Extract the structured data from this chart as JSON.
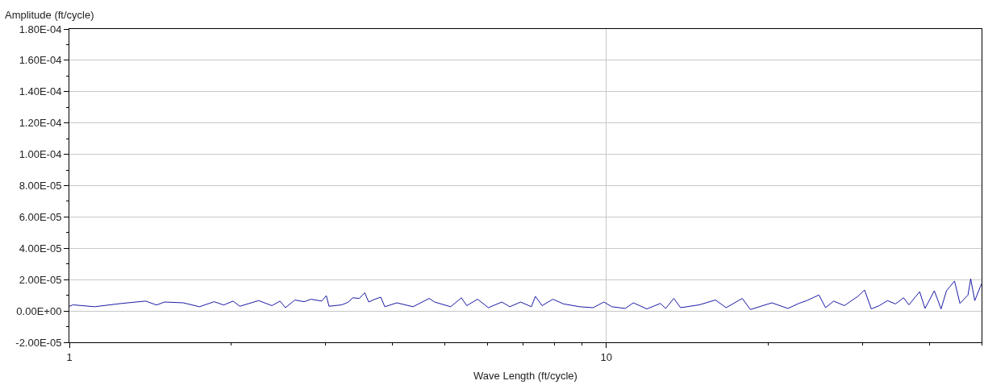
{
  "chart_data": {
    "type": "line",
    "ylabel": "Amplitude (ft/cycle)",
    "xlabel": "Wave Length (ft/cycle)",
    "log": "x",
    "grid": true,
    "marker": "none",
    "line_style": "solid",
    "xlim": [
      1,
      50
    ],
    "xticks": [
      1,
      {
        "value": 2,
        "label": null
      },
      {
        "value": 3,
        "label": null
      },
      {
        "value": 4,
        "label": null
      },
      {
        "value": 5,
        "label": null
      },
      {
        "value": 6,
        "label": null
      },
      {
        "value": 7,
        "label": null
      },
      {
        "value": 8,
        "label": null
      },
      {
        "value": 9,
        "label": null
      },
      10,
      {
        "value": 20,
        "label": null
      },
      {
        "value": 30,
        "label": null
      },
      {
        "value": 40,
        "label": null
      },
      {
        "value": 50,
        "label": null
      }
    ],
    "ylim": [
      -2e-05,
      0.00018
    ],
    "yticks": [
      {
        "value": -2e-05,
        "label": "-2.00E-05"
      },
      {
        "value": -1e-05,
        "label": null
      },
      {
        "value": 0,
        "label": "0.00E+00"
      },
      {
        "value": 1e-05,
        "label": null
      },
      {
        "value": 2e-05,
        "label": "2.00E-05"
      },
      {
        "value": 3e-05,
        "label": null
      },
      {
        "value": 4e-05,
        "label": "4.00E-05"
      },
      {
        "value": 5e-05,
        "label": null
      },
      {
        "value": 6e-05,
        "label": "6.00E-05"
      },
      {
        "value": 7e-05,
        "label": null
      },
      {
        "value": 8e-05,
        "label": "8.00E-05"
      },
      {
        "value": 9e-05,
        "label": null
      },
      {
        "value": 0.0001,
        "label": "1.00E-04"
      },
      {
        "value": 0.00011,
        "label": null
      },
      {
        "value": 0.00012,
        "label": "1.20E-04"
      },
      {
        "value": 0.00013,
        "label": null
      },
      {
        "value": 0.00014,
        "label": "1.40E-04"
      },
      {
        "value": 0.00015,
        "label": null
      },
      {
        "value": 0.00016,
        "label": "1.60E-04"
      },
      {
        "value": 0.00017,
        "label": null
      },
      {
        "value": 0.00018,
        "label": "1.80E-04"
      }
    ],
    "series": [
      {
        "color": "#1a1aa6",
        "x": [
          1.0,
          1.016,
          1.114,
          1.251,
          1.387,
          1.453,
          1.504,
          1.63,
          1.747,
          1.861,
          1.938,
          2.018,
          2.077,
          2.251,
          2.384,
          2.468,
          2.526,
          2.63,
          2.737,
          2.818,
          2.951,
          3.01,
          3.045,
          3.217,
          3.311,
          3.369,
          3.468,
          3.548,
          3.61,
          3.695,
          3.802,
          3.868,
          4.074,
          4.366,
          4.679,
          4.788,
          5.131,
          5.373,
          5.498,
          5.758,
          6.031,
          6.389,
          6.613,
          6.925,
          7.252,
          7.378,
          7.594,
          7.951,
          8.326,
          8.923,
          9.452,
          9.897,
          10.24,
          10.85,
          11.23,
          11.9,
          12.61,
          12.9,
          13.36,
          13.75,
          14.9,
          15.97,
          16.72,
          17.92,
          18.55,
          20.34,
          21.79,
          22.83,
          23.63,
          24.89,
          25.61,
          26.51,
          27.76,
          29.41,
          30.27,
          31.16,
          32.25,
          33.39,
          34.56,
          35.78,
          36.61,
          38.34,
          39.23,
          40.83,
          42.03,
          43.01,
          44.52,
          45.57,
          47.17,
          47.72,
          48.56,
          49.98
        ],
        "values": [
          3e-06,
          3.9e-06,
          2.7e-06,
          4.8e-06,
          6.3e-06,
          3.8e-06,
          5.7e-06,
          5.2e-06,
          2.7e-06,
          5.9e-06,
          3.8e-06,
          6.3e-06,
          3e-06,
          6.6e-06,
          3.4e-06,
          6.3e-06,
          2.1e-06,
          7e-06,
          5.9e-06,
          7.5e-06,
          6.3e-06,
          9.8e-06,
          3e-06,
          3.9e-06,
          5.7e-06,
          8.4e-06,
          8e-06,
          1.16e-05,
          5.7e-06,
          7.3e-06,
          8.8e-06,
          2.7e-06,
          5.2e-06,
          2.7e-06,
          8e-06,
          5.7e-06,
          2.7e-06,
          8.4e-06,
          3.4e-06,
          7.5e-06,
          2.1e-06,
          5.7e-06,
          2.7e-06,
          5.7e-06,
          2.7e-06,
          9.3e-06,
          3.4e-06,
          7.5e-06,
          4.5e-06,
          2.7e-06,
          2.1e-06,
          5.7e-06,
          2.7e-06,
          1.6e-06,
          5.2e-06,
          1.3e-06,
          4.8e-06,
          1.6e-06,
          8e-06,
          2.1e-06,
          3.9e-06,
          7e-06,
          2.1e-06,
          8e-06,
          9e-07,
          5.2e-06,
          1.6e-06,
          4.8e-06,
          6.6e-06,
          1.02e-05,
          2.1e-06,
          6.3e-06,
          3.4e-06,
          9.3e-06,
          1.34e-05,
          1.3e-06,
          3.4e-06,
          6.6e-06,
          4.5e-06,
          8.4e-06,
          3.9e-06,
          1.23e-05,
          1.6e-06,
          1.29e-05,
          1.3e-06,
          1.29e-05,
          1.91e-05,
          4.8e-06,
          1.02e-05,
          2.05e-05,
          6.6e-06,
          1.73e-05
        ]
      }
    ]
  }
}
